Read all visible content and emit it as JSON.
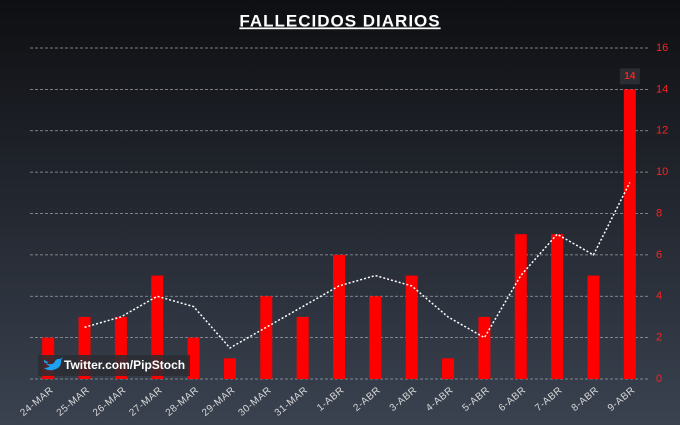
{
  "chart_data": {
    "type": "bar",
    "title": "FALLECIDOS DIARIOS",
    "categories": [
      "24-MAR",
      "25-MAR",
      "26-MAR",
      "27-MAR",
      "28-MAR",
      "29-MAR",
      "30-MAR",
      "31-MAR",
      "1-ABR",
      "2-ABR",
      "3-ABR",
      "4-ABR",
      "5-ABR",
      "6-ABR",
      "7-ABR",
      "8-ABR",
      "9-ABR"
    ],
    "series": [
      {
        "type": "bar",
        "color": "#ff0000",
        "values": [
          2,
          3,
          3,
          5,
          2,
          1,
          4,
          3,
          6,
          4,
          5,
          1,
          3,
          7,
          7,
          5,
          14
        ]
      },
      {
        "type": "line",
        "color": "#ffffff",
        "values": [
          null,
          2.5,
          3,
          4,
          3.5,
          1.5,
          2.5,
          3.5,
          4.5,
          5,
          4.5,
          3,
          2,
          5,
          7,
          6,
          9.5
        ]
      }
    ],
    "ylim": [
      0,
      16
    ],
    "yticks": [
      0,
      2,
      4,
      6,
      8,
      10,
      12,
      14,
      16
    ],
    "grid": true,
    "annotations": [
      "Twitter.com/PipStoch"
    ]
  }
}
